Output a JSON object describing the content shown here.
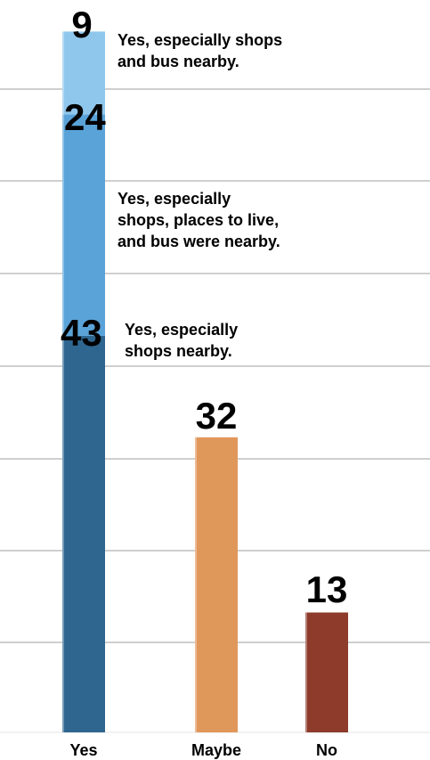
{
  "chart_data": {
    "type": "bar",
    "stacked": true,
    "categories": [
      "Yes",
      "Maybe",
      "No"
    ],
    "series": [
      {
        "category": "Yes",
        "segments": [
          {
            "value": 43,
            "label": "43",
            "note": [
              "Yes, especially",
              "shops nearby."
            ],
            "color": "#2e6690"
          },
          {
            "value": 24,
            "label": "24",
            "note": [
              "Yes, especially",
              "shops, places to live,",
              "and bus were nearby."
            ],
            "color": "#5aa3d8"
          },
          {
            "value": 9,
            "label": "9",
            "note": [
              "Yes, especially shops",
              "and bus nearby."
            ],
            "color": "#8fc7ec"
          }
        ]
      },
      {
        "category": "Maybe",
        "segments": [
          {
            "value": 32,
            "label": "32",
            "note": [],
            "color": "#e0975a"
          }
        ]
      },
      {
        "category": "No",
        "segments": [
          {
            "value": 13,
            "label": "13",
            "note": [],
            "color": "#8e3b2b"
          }
        ]
      }
    ],
    "ylim": [
      0,
      76
    ],
    "grid": true,
    "title": "",
    "xlabel": "",
    "ylabel": ""
  }
}
